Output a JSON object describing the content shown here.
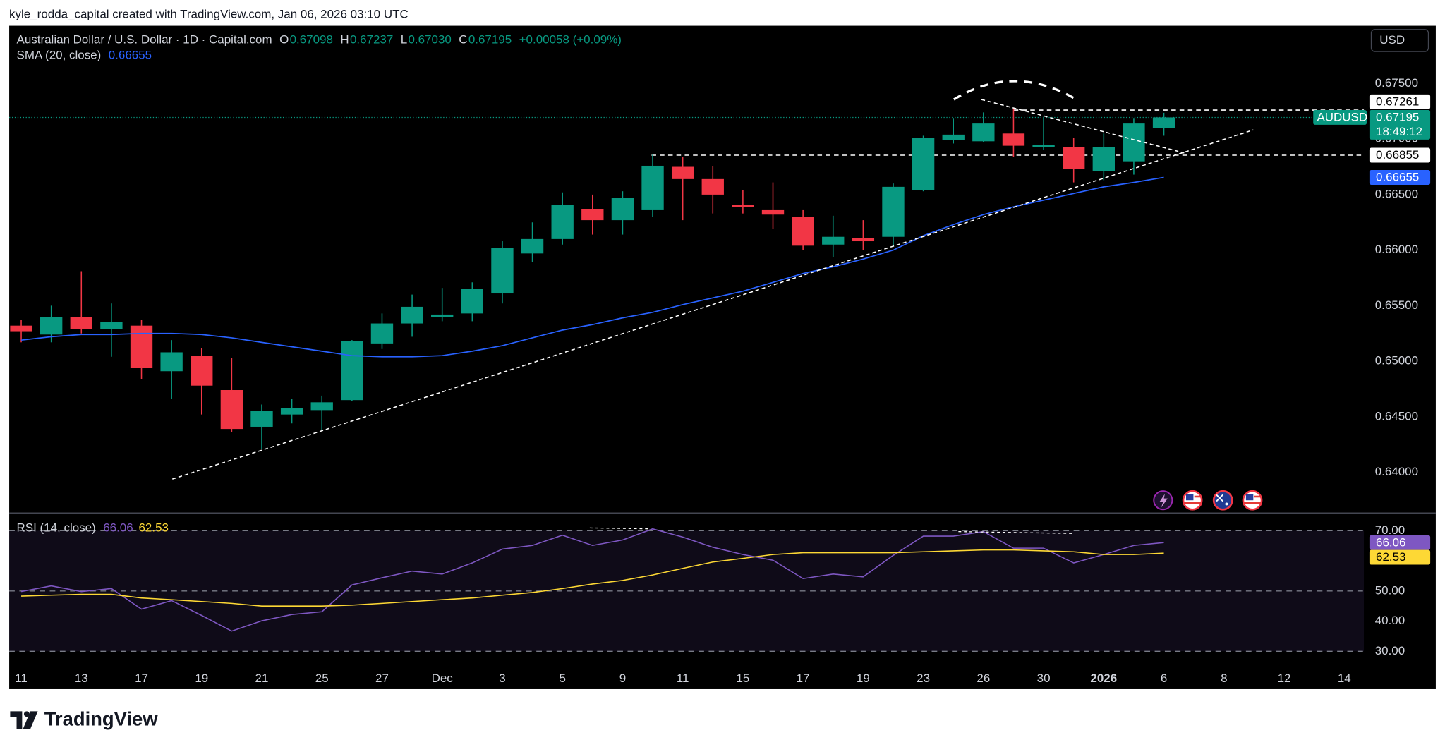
{
  "header": {
    "attribution": "kyle_rodda_capital created with TradingView.com, Jan 06, 2026 03:10 UTC"
  },
  "currency": "USD",
  "footer": {
    "brand": "TradingView"
  },
  "chart_data": [
    {
      "type": "candlestick",
      "title": "Australian Dollar / U.S. Dollar · 1D · Capital.com",
      "symbol": "AUDUSD",
      "countdown": "18:49:12",
      "legend": [
        {
          "key": "O",
          "value": "0.67098"
        },
        {
          "key": "H",
          "value": "0.67237"
        },
        {
          "key": "L",
          "value": "0.67030"
        },
        {
          "key": "C",
          "value": "0.67195"
        }
      ],
      "change": "+0.00058 (+0.09%)",
      "categories": [
        "11",
        null,
        "13",
        null,
        "17",
        null,
        "19",
        null,
        "21",
        null,
        "25",
        null,
        "27",
        null,
        "Dec",
        null,
        "3",
        null,
        "5",
        null,
        "9",
        null,
        "11",
        null,
        "15",
        null,
        "17",
        null,
        "19",
        null,
        "23",
        null,
        "26",
        null,
        "30",
        null,
        "2026",
        null,
        "6",
        null,
        "8",
        null,
        "12",
        null,
        "14"
      ],
      "open": [
        0.6532,
        0.6524,
        0.654,
        0.6529,
        0.6532,
        0.6491,
        0.6505,
        0.6474,
        0.6441,
        0.6452,
        0.6456,
        0.6465,
        0.6516,
        0.6534,
        0.654,
        0.6543,
        0.6561,
        0.6597,
        0.661,
        0.6637,
        0.6627,
        0.6636,
        0.6675,
        0.6664,
        0.6641,
        0.6636,
        0.663,
        0.6605,
        0.6611,
        0.6612,
        0.6654,
        0.6699,
        0.6698,
        0.6705,
        0.6693,
        0.6693,
        0.6671,
        0.668,
        0.67098,
        null,
        null,
        null,
        null,
        null,
        null
      ],
      "high": [
        0.6537,
        0.655,
        0.6581,
        0.6552,
        0.6537,
        0.6519,
        0.6512,
        0.6503,
        0.6461,
        0.6466,
        0.6469,
        0.6519,
        0.6543,
        0.656,
        0.6566,
        0.6571,
        0.6608,
        0.6625,
        0.6652,
        0.665,
        0.6653,
        0.6686,
        0.6684,
        0.6676,
        0.6654,
        0.6661,
        0.6636,
        0.6631,
        0.6627,
        0.666,
        0.6703,
        0.6719,
        0.6724,
        0.6728,
        0.672,
        0.6701,
        0.6705,
        0.6719,
        0.67237,
        null,
        null,
        null,
        null,
        null,
        null
      ],
      "low": [
        0.6517,
        0.6517,
        0.6525,
        0.6504,
        0.6484,
        0.6466,
        0.6452,
        0.6436,
        0.6421,
        0.6444,
        0.6437,
        0.6464,
        0.6511,
        0.6522,
        0.6536,
        0.6536,
        0.6552,
        0.6589,
        0.6605,
        0.6614,
        0.6614,
        0.663,
        0.6627,
        0.6633,
        0.6633,
        0.6619,
        0.66,
        0.6594,
        0.66,
        0.6603,
        0.6653,
        0.6696,
        0.6697,
        0.6684,
        0.669,
        0.6661,
        0.6663,
        0.6668,
        0.6703,
        null,
        null,
        null,
        null,
        null,
        null
      ],
      "close": [
        0.6527,
        0.654,
        0.6529,
        0.6535,
        0.6494,
        0.6508,
        0.6478,
        0.6439,
        0.6455,
        0.6458,
        0.6463,
        0.6518,
        0.6534,
        0.6549,
        0.6542,
        0.6565,
        0.6602,
        0.661,
        0.6641,
        0.6627,
        0.6647,
        0.6676,
        0.6664,
        0.665,
        0.6639,
        0.6632,
        0.6604,
        0.6612,
        0.6608,
        0.6657,
        0.6701,
        0.6704,
        0.6714,
        0.6694,
        0.6695,
        0.6673,
        0.6693,
        0.6714,
        0.67195,
        null,
        null,
        null,
        null,
        null,
        null
      ],
      "up_color": "#089981",
      "down_color": "#f23645",
      "series": [
        {
          "name": "SMA (20, close)",
          "color": "#2962ff",
          "values": [
            0.6519,
            0.6522,
            0.6524,
            0.6524,
            0.6525,
            0.6525,
            0.6524,
            0.6521,
            0.6517,
            0.6513,
            0.6509,
            0.6505,
            0.6504,
            0.6504,
            0.6505,
            0.6509,
            0.6514,
            0.6521,
            0.6528,
            0.6533,
            0.6539,
            0.6544,
            0.6551,
            0.6557,
            0.6563,
            0.6571,
            0.6579,
            0.6585,
            0.6592,
            0.66,
            0.6613,
            0.6623,
            0.6632,
            0.6639,
            0.6645,
            0.6651,
            0.6657,
            0.6661,
            0.66655,
            null,
            null,
            null,
            null,
            null,
            null
          ]
        }
      ],
      "hlines": [
        0.67261,
        0.66855
      ],
      "ylim": [
        0.6364,
        0.6802
      ],
      "yticks": [
        {
          "value": 0.64,
          "label": "0.64000"
        },
        {
          "value": 0.645,
          "label": "0.64500"
        },
        {
          "value": 0.65,
          "label": "0.65000"
        },
        {
          "value": 0.655,
          "label": "0.65500"
        },
        {
          "value": 0.66,
          "label": "0.66000"
        },
        {
          "value": 0.665,
          "label": "0.66500"
        },
        {
          "value": 0.67,
          "label": "0.67000"
        },
        {
          "value": 0.675,
          "label": "0.67500"
        }
      ],
      "grid": false
    },
    {
      "type": "line",
      "title": "RSI (14, close)",
      "series": [
        {
          "color": "#7e57c2",
          "values": [
            49.8,
            51.7,
            49.8,
            50.8,
            44.0,
            46.8,
            41.9,
            36.7,
            40.1,
            42.2,
            43.1,
            52.0,
            54.4,
            56.6,
            55.6,
            59.3,
            63.9,
            65.1,
            68.5,
            65.1,
            66.9,
            70.6,
            67.9,
            64.5,
            62.1,
            60.2,
            54.1,
            55.6,
            54.7,
            61.8,
            68.2,
            68.2,
            69.7,
            64.2,
            64.2,
            59.3,
            62.1,
            65.1,
            66.06,
            null,
            null,
            null,
            null,
            null,
            null
          ]
        },
        {
          "color": "#fdd835",
          "values": [
            48.3,
            48.6,
            48.9,
            48.9,
            47.7,
            47.1,
            46.5,
            45.9,
            45.0,
            45.0,
            45.0,
            45.3,
            45.9,
            46.5,
            47.1,
            47.7,
            48.6,
            49.5,
            50.8,
            52.3,
            53.5,
            55.3,
            57.5,
            59.6,
            60.8,
            62.1,
            62.7,
            62.7,
            62.7,
            62.7,
            63.0,
            63.3,
            63.6,
            63.6,
            63.3,
            63.0,
            62.1,
            62.1,
            62.53,
            null,
            null,
            null,
            null,
            null,
            null
          ]
        }
      ],
      "ylim": [
        26,
        75.5
      ],
      "yticks": [
        {
          "value": 30,
          "label": "30.00"
        },
        {
          "value": 40,
          "label": "40.00"
        },
        {
          "value": 50,
          "label": "50.00"
        },
        {
          "value": 70,
          "label": "70.00"
        }
      ],
      "hlines": [
        70,
        50,
        30
      ],
      "band": [
        30,
        70
      ]
    }
  ]
}
